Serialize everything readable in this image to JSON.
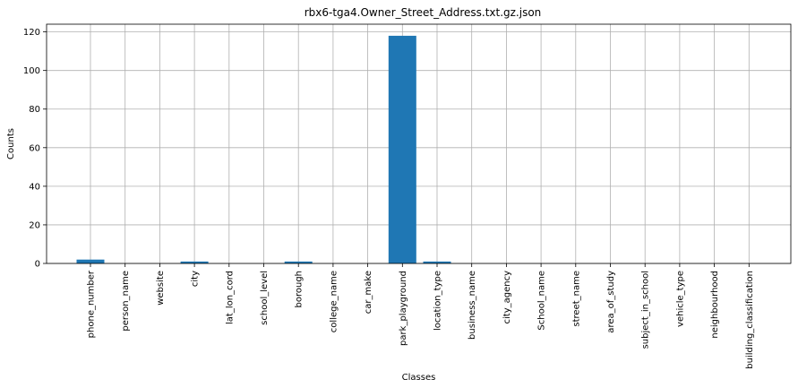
{
  "chart_data": {
    "type": "bar",
    "title": "rbx6-tga4.Owner_Street_Address.txt.gz.json",
    "xlabel": "Classes",
    "ylabel": "Counts",
    "categories": [
      "phone_number",
      "person_name",
      "website",
      "city",
      "lat_lon_cord",
      "school_level",
      "borough",
      "college_name",
      "car_make",
      "park_playground",
      "location_type",
      "business_name",
      "city_agency",
      "School_name",
      "street_name",
      "area_of_study",
      "subject_in_school",
      "vehicle_type",
      "neighbourhood",
      "building_classification"
    ],
    "values": [
      2,
      0,
      0,
      1,
      0,
      0,
      1,
      0,
      0,
      118,
      1,
      0,
      0,
      0,
      0,
      0,
      0,
      0,
      0,
      0
    ],
    "ylim": [
      0,
      124
    ],
    "yticks": [
      0,
      20,
      40,
      60,
      80,
      100,
      120
    ],
    "grid": true,
    "bar_color": "#1f77b4"
  }
}
